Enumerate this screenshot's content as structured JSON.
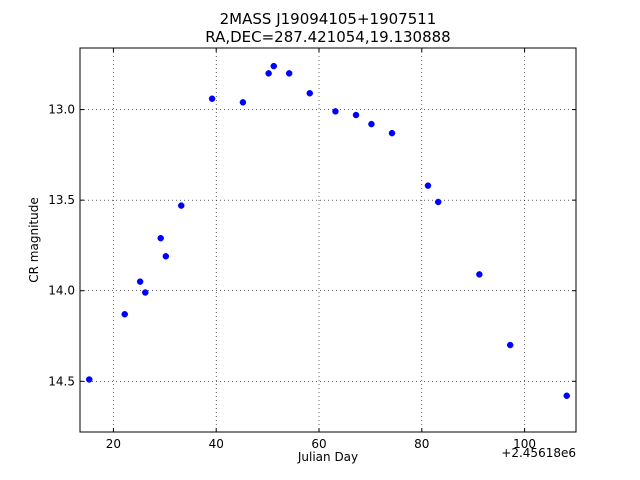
{
  "chart_data": {
    "type": "scatter",
    "title": "2MASS J19094105+1907511",
    "subtitle": "RA,DEC=287.421054,19.130888",
    "xlabel": "Julian Day",
    "ylabel": "CR magnitude",
    "x_offset_label": "+2.45618e6",
    "xlim": [
      13.5,
      110
    ],
    "ylim": [
      14.78,
      12.66
    ],
    "y_inverted": true,
    "grid": true,
    "x_ticks": [
      {
        "value": 20,
        "label": "20"
      },
      {
        "value": 40,
        "label": "40"
      },
      {
        "value": 60,
        "label": "60"
      },
      {
        "value": 80,
        "label": "80"
      },
      {
        "value": 100,
        "label": "100"
      }
    ],
    "y_ticks": [
      {
        "value": 13.0,
        "label": "13.0"
      },
      {
        "value": 13.5,
        "label": "13.5"
      },
      {
        "value": 14.0,
        "label": "14.0"
      },
      {
        "value": 14.5,
        "label": "14.5"
      }
    ],
    "marker_color": "#0000ff",
    "points": [
      {
        "x": 15.3,
        "y": 14.49
      },
      {
        "x": 22.2,
        "y": 14.13
      },
      {
        "x": 25.2,
        "y": 13.95
      },
      {
        "x": 26.2,
        "y": 14.01
      },
      {
        "x": 29.2,
        "y": 13.71
      },
      {
        "x": 30.2,
        "y": 13.81
      },
      {
        "x": 33.2,
        "y": 13.53
      },
      {
        "x": 39.2,
        "y": 12.94
      },
      {
        "x": 45.2,
        "y": 12.96
      },
      {
        "x": 50.2,
        "y": 12.8
      },
      {
        "x": 51.2,
        "y": 12.76
      },
      {
        "x": 54.2,
        "y": 12.8
      },
      {
        "x": 58.2,
        "y": 12.91
      },
      {
        "x": 63.2,
        "y": 13.01
      },
      {
        "x": 67.2,
        "y": 13.03
      },
      {
        "x": 70.2,
        "y": 13.08
      },
      {
        "x": 74.2,
        "y": 13.13
      },
      {
        "x": 81.2,
        "y": 13.42
      },
      {
        "x": 83.2,
        "y": 13.51
      },
      {
        "x": 91.2,
        "y": 13.91
      },
      {
        "x": 97.2,
        "y": 14.3
      },
      {
        "x": 108.2,
        "y": 14.58
      }
    ]
  }
}
